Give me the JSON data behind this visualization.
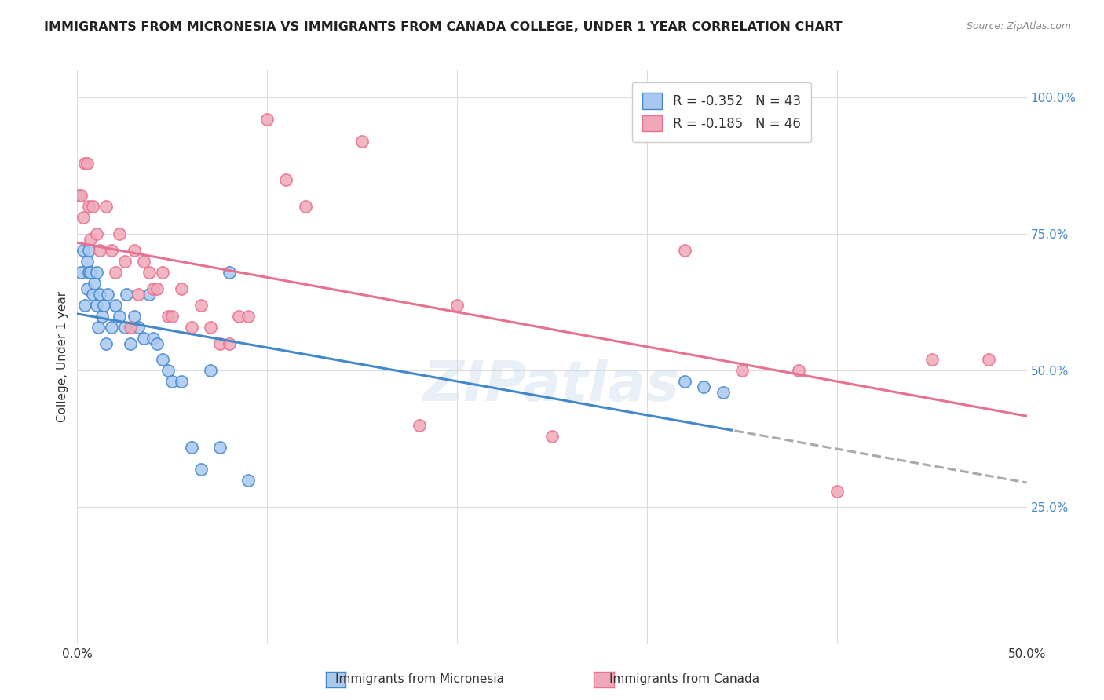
{
  "title": "IMMIGRANTS FROM MICRONESIA VS IMMIGRANTS FROM CANADA COLLEGE, UNDER 1 YEAR CORRELATION CHART",
  "source": "Source: ZipAtlas.com",
  "ylabel": "College, Under 1 year",
  "xlim": [
    0.0,
    0.5
  ],
  "ylim": [
    0.0,
    1.05
  ],
  "xticks": [
    0.0,
    0.1,
    0.2,
    0.3,
    0.4,
    0.5
  ],
  "xticklabels": [
    "0.0%",
    "",
    "",
    "",
    "",
    "50.0%"
  ],
  "yticks_right": [
    0.0,
    0.25,
    0.5,
    0.75,
    1.0
  ],
  "yticklabels_right": [
    "",
    "25.0%",
    "50.0%",
    "75.0%",
    "100.0%"
  ],
  "blue_color": "#a8c8f0",
  "pink_color": "#f0a8b8",
  "blue_line_color": "#4488cc",
  "pink_line_color": "#e87090",
  "dashed_color": "#aaaaaa",
  "R_blue": -0.352,
  "N_blue": 43,
  "R_pink": -0.185,
  "N_pink": 46,
  "blue_scatter_x": [
    0.002,
    0.003,
    0.004,
    0.005,
    0.005,
    0.006,
    0.006,
    0.007,
    0.008,
    0.009,
    0.01,
    0.01,
    0.011,
    0.012,
    0.013,
    0.014,
    0.015,
    0.016,
    0.018,
    0.02,
    0.022,
    0.025,
    0.026,
    0.028,
    0.03,
    0.032,
    0.035,
    0.038,
    0.04,
    0.042,
    0.045,
    0.048,
    0.05,
    0.055,
    0.06,
    0.065,
    0.07,
    0.075,
    0.08,
    0.09,
    0.32,
    0.33,
    0.34
  ],
  "blue_scatter_y": [
    0.68,
    0.72,
    0.62,
    0.7,
    0.65,
    0.68,
    0.72,
    0.68,
    0.64,
    0.66,
    0.62,
    0.68,
    0.58,
    0.64,
    0.6,
    0.62,
    0.55,
    0.64,
    0.58,
    0.62,
    0.6,
    0.58,
    0.64,
    0.55,
    0.6,
    0.58,
    0.56,
    0.64,
    0.56,
    0.55,
    0.52,
    0.5,
    0.48,
    0.48,
    0.36,
    0.32,
    0.5,
    0.36,
    0.68,
    0.3,
    0.48,
    0.47,
    0.46
  ],
  "pink_scatter_x": [
    0.001,
    0.002,
    0.003,
    0.004,
    0.005,
    0.006,
    0.007,
    0.008,
    0.01,
    0.012,
    0.015,
    0.018,
    0.02,
    0.022,
    0.025,
    0.028,
    0.03,
    0.032,
    0.035,
    0.038,
    0.04,
    0.042,
    0.045,
    0.048,
    0.05,
    0.055,
    0.06,
    0.065,
    0.07,
    0.075,
    0.08,
    0.085,
    0.09,
    0.1,
    0.11,
    0.12,
    0.15,
    0.18,
    0.2,
    0.25,
    0.32,
    0.35,
    0.38,
    0.4,
    0.45,
    0.48
  ],
  "pink_scatter_y": [
    0.82,
    0.82,
    0.78,
    0.88,
    0.88,
    0.8,
    0.74,
    0.8,
    0.75,
    0.72,
    0.8,
    0.72,
    0.68,
    0.75,
    0.7,
    0.58,
    0.72,
    0.64,
    0.7,
    0.68,
    0.65,
    0.65,
    0.68,
    0.6,
    0.6,
    0.65,
    0.58,
    0.62,
    0.58,
    0.55,
    0.55,
    0.6,
    0.6,
    0.96,
    0.85,
    0.8,
    0.92,
    0.4,
    0.62,
    0.38,
    0.72,
    0.5,
    0.5,
    0.28,
    0.52,
    0.52
  ],
  "watermark": "ZIPatlas",
  "background_color": "#ffffff",
  "grid_color": "#dddddd"
}
